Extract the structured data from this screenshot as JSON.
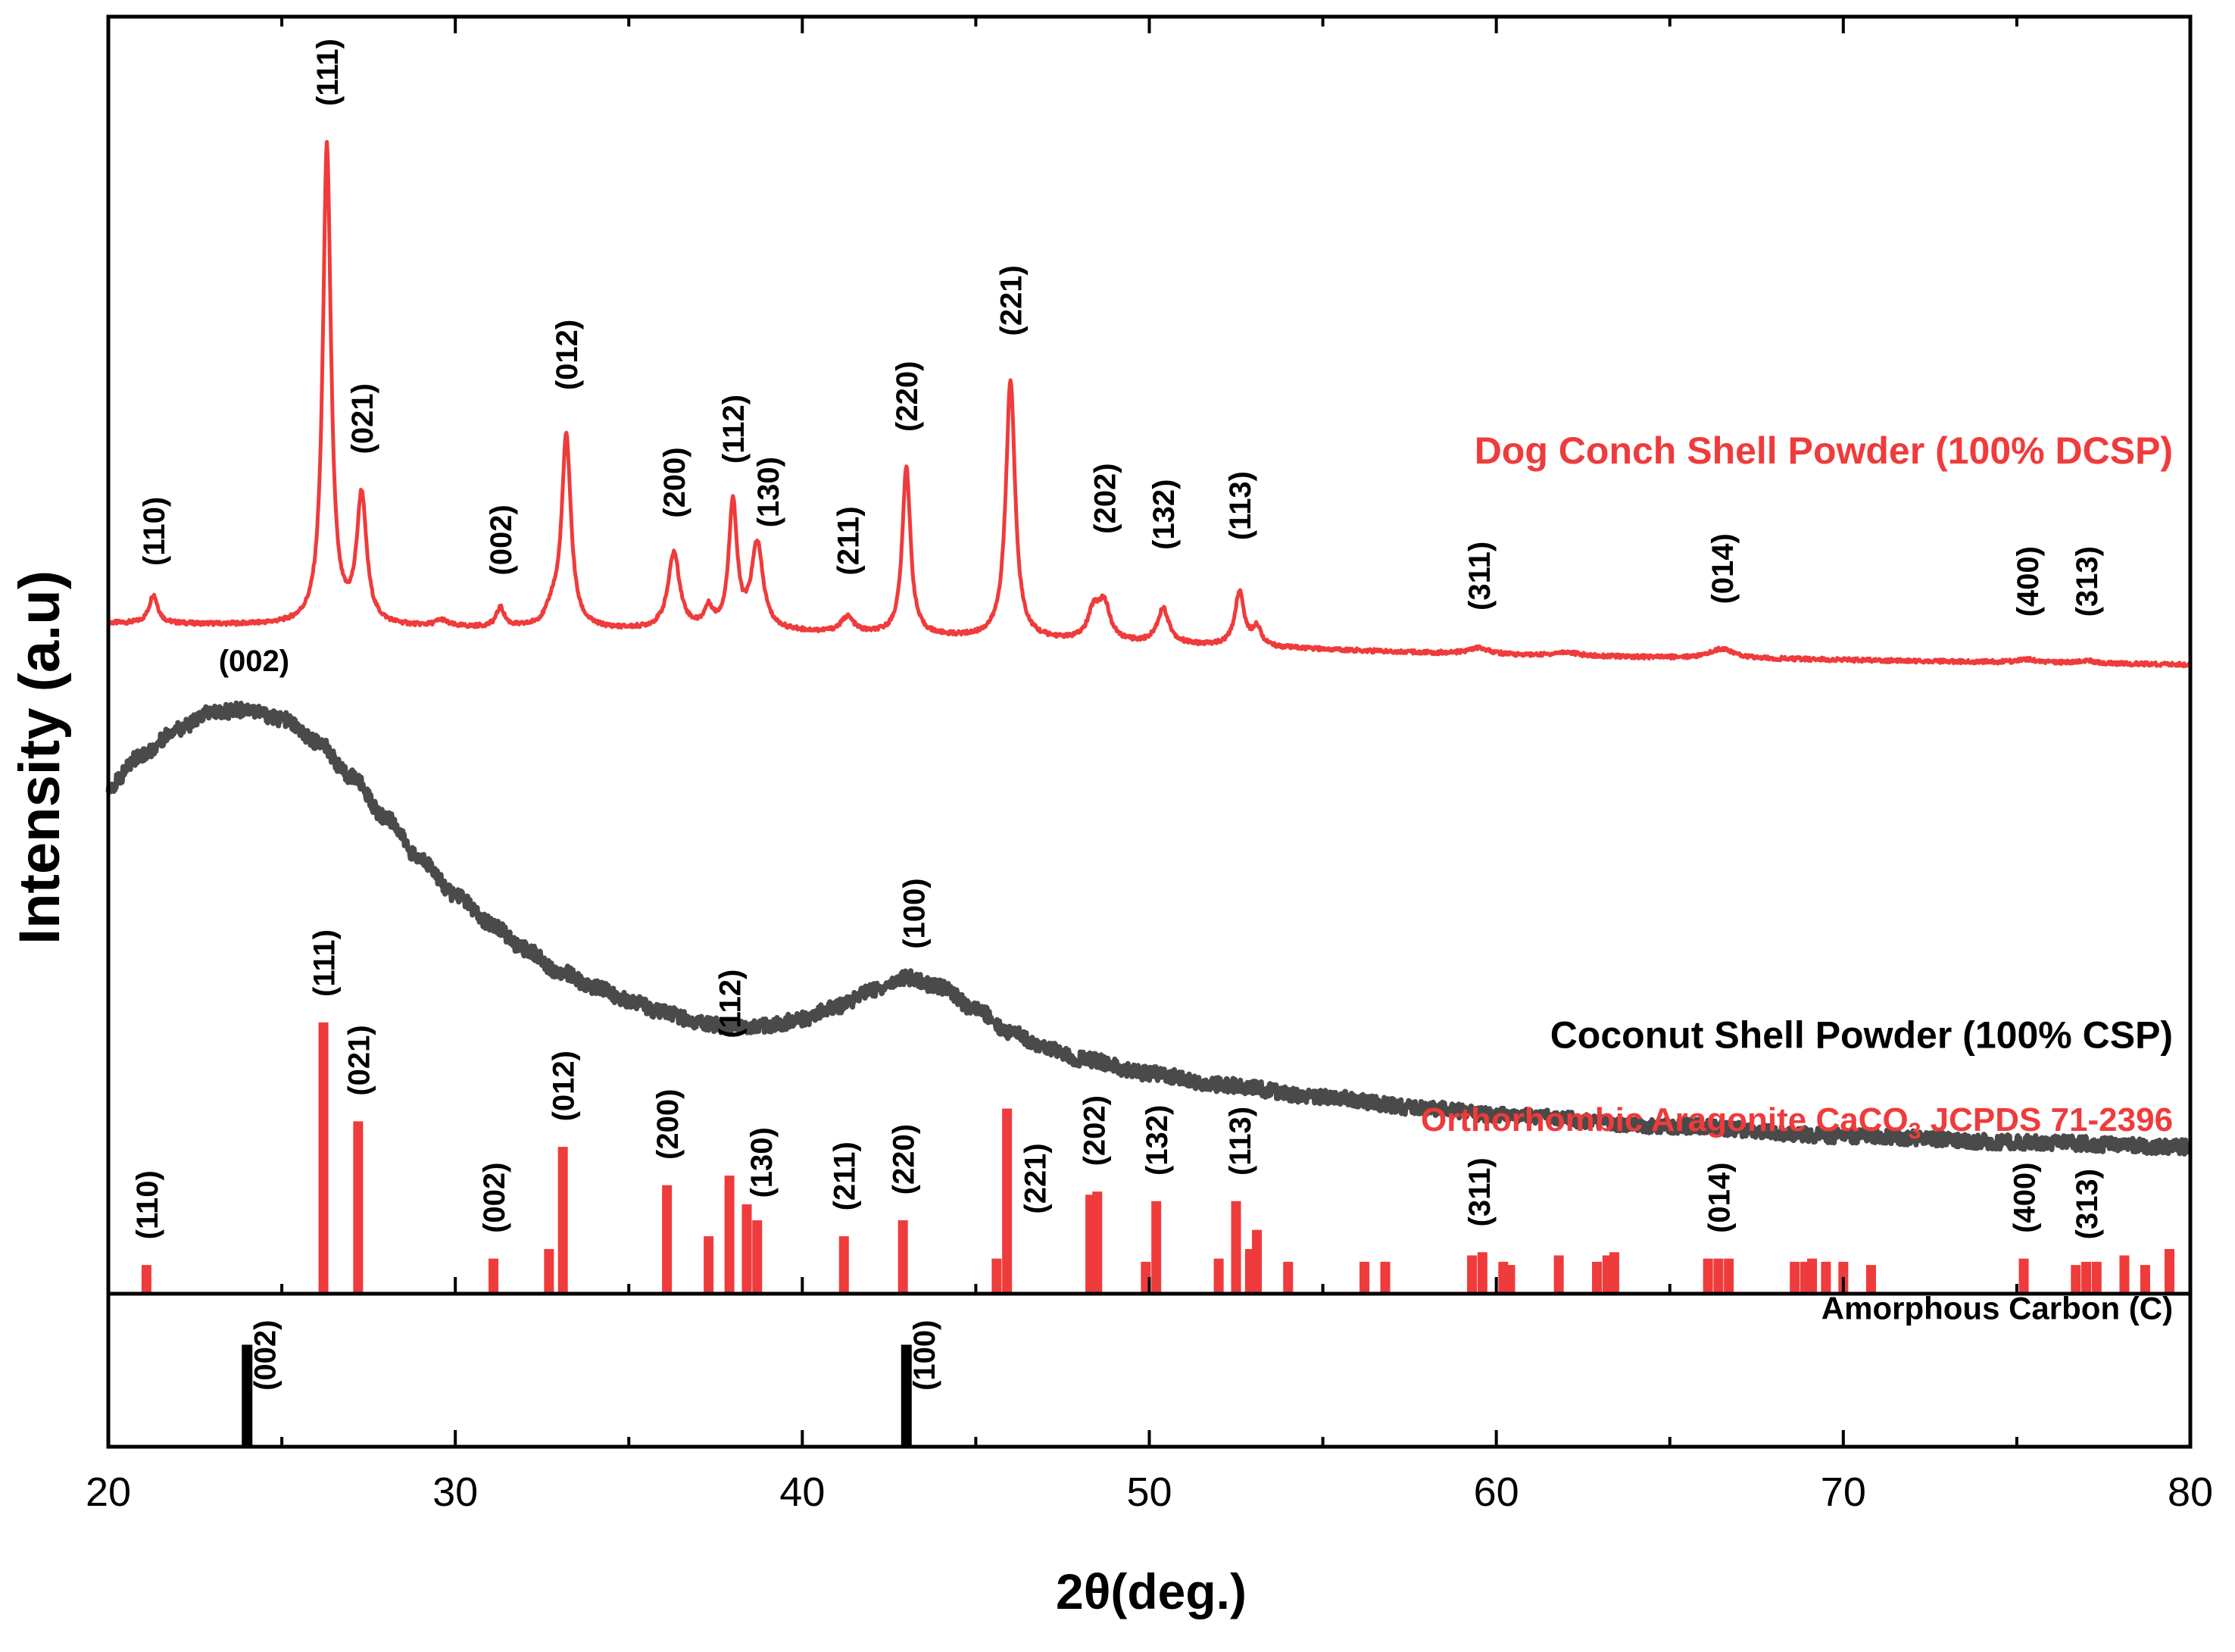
{
  "chart_data": {
    "type": "line",
    "xlabel": "2θ(deg.)",
    "ylabel": "Intensity (a.u)",
    "xlim": [
      20,
      80
    ],
    "x_ticks": [
      20,
      30,
      40,
      50,
      60,
      70,
      80
    ],
    "x_tick_labels": [
      "20",
      "30",
      "40",
      "50",
      "60",
      "70",
      "80"
    ],
    "y_ticks_shown": false,
    "colors": {
      "dcsp": "#ef3b3b",
      "csp": "#4a4a4a",
      "aragonite": "#ef3b3b",
      "carbon": "#000000"
    },
    "series": [
      {
        "name": "Dog Conch Shell Powder (100% DCSP)",
        "kind": "pattern",
        "baseline": [
          [
            20,
            21.0
          ],
          [
            40,
            20.7
          ],
          [
            60,
            20.0
          ],
          [
            80,
            19.7
          ]
        ],
        "peaks": [
          {
            "x": 21.3,
            "h": 0.9,
            "w": 0.15,
            "label": "(110)"
          },
          {
            "x": 26.3,
            "h": 15.0,
            "w": 0.14,
            "label": "(111)"
          },
          {
            "x": 27.3,
            "h": 4.0,
            "w": 0.17,
            "label": "(021)"
          },
          {
            "x": 29.6,
            "h": 0.2,
            "w": 0.2,
            "label": ""
          },
          {
            "x": 31.3,
            "h": 0.6,
            "w": 0.14,
            "label": "(002)"
          },
          {
            "x": 32.8,
            "h": 0.5,
            "w": 0.2,
            "label": ""
          },
          {
            "x": 33.2,
            "h": 6.0,
            "w": 0.16,
            "label": "(012)"
          },
          {
            "x": 36.3,
            "h": 2.4,
            "w": 0.2,
            "label": "(200)"
          },
          {
            "x": 37.3,
            "h": 0.6,
            "w": 0.15,
            "label": ""
          },
          {
            "x": 38.0,
            "h": 4.0,
            "w": 0.14,
            "label": "(112)"
          },
          {
            "x": 38.7,
            "h": 2.7,
            "w": 0.2,
            "label": "(130)"
          },
          {
            "x": 41.3,
            "h": 0.5,
            "w": 0.22,
            "label": "(211)"
          },
          {
            "x": 43.0,
            "h": 5.3,
            "w": 0.14,
            "label": "(220)"
          },
          {
            "x": 46.0,
            "h": 8.1,
            "w": 0.16,
            "label": "(221)"
          },
          {
            "x": 48.4,
            "h": 0.9,
            "w": 0.2,
            "label": ""
          },
          {
            "x": 48.7,
            "h": 1.1,
            "w": 0.2,
            "label": "(202)"
          },
          {
            "x": 50.4,
            "h": 1.1,
            "w": 0.2,
            "label": "(132)"
          },
          {
            "x": 52.6,
            "h": 1.7,
            "w": 0.16,
            "label": "(113)"
          },
          {
            "x": 53.1,
            "h": 0.6,
            "w": 0.15,
            "label": ""
          },
          {
            "x": 59.5,
            "h": 0.2,
            "w": 0.4,
            "label": "(311)"
          },
          {
            "x": 62.0,
            "h": 0.12,
            "w": 0.4,
            "label": ""
          },
          {
            "x": 66.5,
            "h": 0.3,
            "w": 0.4,
            "label": "(014)"
          },
          {
            "x": 75.3,
            "h": 0.1,
            "w": 0.3,
            "label": "(400)"
          },
          {
            "x": 77.0,
            "h": 0.08,
            "w": 0.3,
            "label": "(313)"
          }
        ],
        "label_positions": [
          {
            "label": "(110)",
            "x": 21.3,
            "y": 22.8
          },
          {
            "label": "(111)",
            "x": 26.3,
            "y": 37.2
          },
          {
            "label": "(021)",
            "x": 27.3,
            "y": 26.3
          },
          {
            "label": "(002)",
            "x": 31.3,
            "y": 22.5
          },
          {
            "label": "(012)",
            "x": 33.2,
            "y": 28.3
          },
          {
            "label": "(200)",
            "x": 36.3,
            "y": 24.3
          },
          {
            "label": "(112)",
            "x": 38.0,
            "y": 26.0
          },
          {
            "label": "(130)",
            "x": 39.0,
            "y": 24.0
          },
          {
            "label": "(211)",
            "x": 41.3,
            "y": 22.5
          },
          {
            "label": "(220)",
            "x": 43.0,
            "y": 27.0
          },
          {
            "label": "(221)",
            "x": 46.0,
            "y": 30.0
          },
          {
            "label": "(202)",
            "x": 48.7,
            "y": 23.8
          },
          {
            "label": "(132)",
            "x": 50.4,
            "y": 23.3
          },
          {
            "label": "(113)",
            "x": 52.6,
            "y": 23.6
          },
          {
            "label": "(311)",
            "x": 59.5,
            "y": 21.4
          },
          {
            "label": "(014)",
            "x": 66.5,
            "y": 21.6
          },
          {
            "label": "(400)",
            "x": 75.3,
            "y": 21.2
          },
          {
            "label": "(313)",
            "x": 77.0,
            "y": 21.2
          }
        ],
        "legend_label": {
          "text": "Dog Conch Shell Powder (100% DCSP)",
          "x": 79.5,
          "y": 26.0
        }
      },
      {
        "name": "Coconut Shell Powder (100% CSP)",
        "kind": "curve",
        "points": [
          [
            20,
            15.9
          ],
          [
            21,
            16.9
          ],
          [
            22,
            17.7
          ],
          [
            23,
            18.2
          ],
          [
            24,
            18.3
          ],
          [
            25,
            18.0
          ],
          [
            26,
            17.3
          ],
          [
            27,
            16.2
          ],
          [
            28,
            14.9
          ],
          [
            29,
            13.6
          ],
          [
            30,
            12.5
          ],
          [
            31,
            11.6
          ],
          [
            32,
            10.8
          ],
          [
            33,
            10.1
          ],
          [
            34,
            9.6
          ],
          [
            35,
            9.2
          ],
          [
            36,
            8.8
          ],
          [
            37,
            8.5
          ],
          [
            38,
            8.35
          ],
          [
            39,
            8.4
          ],
          [
            40,
            8.6
          ],
          [
            41,
            9.0
          ],
          [
            42,
            9.5
          ],
          [
            43,
            9.9
          ],
          [
            44,
            9.6
          ],
          [
            45,
            8.9
          ],
          [
            46,
            8.2
          ],
          [
            47,
            7.7
          ],
          [
            48,
            7.35
          ],
          [
            50,
            6.9
          ],
          [
            52,
            6.55
          ],
          [
            55,
            6.15
          ],
          [
            58,
            5.8
          ],
          [
            60,
            5.6
          ],
          [
            65,
            5.25
          ],
          [
            70,
            4.95
          ],
          [
            75,
            4.75
          ],
          [
            80,
            4.6
          ]
        ],
        "label_positions": [
          {
            "label": "(002)",
            "x": 24.2,
            "y": 19.5
          },
          {
            "label": "(100)",
            "x": 43.2,
            "y": 10.8
          }
        ],
        "legend_label": {
          "text": "Coconut Shell Powder (100% CSP)",
          "x": 79.5,
          "y": 7.7
        }
      },
      {
        "name": "Orthorhombic Aragonite CaCO3 JCPDS 71-2396",
        "kind": "stick",
        "sticks": [
          {
            "x": 21.1,
            "h": 0.9
          },
          {
            "x": 26.2,
            "h": 8.5
          },
          {
            "x": 27.2,
            "h": 5.4
          },
          {
            "x": 31.1,
            "h": 1.1
          },
          {
            "x": 32.7,
            "h": 1.4
          },
          {
            "x": 33.1,
            "h": 4.6
          },
          {
            "x": 36.1,
            "h": 3.4
          },
          {
            "x": 37.3,
            "h": 1.8
          },
          {
            "x": 37.9,
            "h": 3.7
          },
          {
            "x": 38.4,
            "h": 2.8
          },
          {
            "x": 38.7,
            "h": 2.3
          },
          {
            "x": 41.2,
            "h": 1.8
          },
          {
            "x": 42.9,
            "h": 2.3
          },
          {
            "x": 45.6,
            "h": 1.1
          },
          {
            "x": 45.9,
            "h": 5.8
          },
          {
            "x": 48.3,
            "h": 3.1
          },
          {
            "x": 48.5,
            "h": 3.2
          },
          {
            "x": 49.9,
            "h": 1.0
          },
          {
            "x": 50.2,
            "h": 2.9
          },
          {
            "x": 52.0,
            "h": 1.1
          },
          {
            "x": 52.5,
            "h": 2.9
          },
          {
            "x": 52.9,
            "h": 1.4
          },
          {
            "x": 53.1,
            "h": 2.0
          },
          {
            "x": 54.0,
            "h": 1.0
          },
          {
            "x": 56.2,
            "h": 1.0
          },
          {
            "x": 56.8,
            "h": 1.0
          },
          {
            "x": 59.3,
            "h": 1.2
          },
          {
            "x": 59.6,
            "h": 1.3
          },
          {
            "x": 60.2,
            "h": 1.0
          },
          {
            "x": 60.4,
            "h": 0.9
          },
          {
            "x": 61.8,
            "h": 1.2
          },
          {
            "x": 62.9,
            "h": 1.0
          },
          {
            "x": 63.2,
            "h": 1.2
          },
          {
            "x": 63.4,
            "h": 1.3
          },
          {
            "x": 66.1,
            "h": 1.1
          },
          {
            "x": 66.4,
            "h": 1.1
          },
          {
            "x": 66.7,
            "h": 1.1
          },
          {
            "x": 68.6,
            "h": 1.0
          },
          {
            "x": 68.9,
            "h": 1.0
          },
          {
            "x": 69.1,
            "h": 1.1
          },
          {
            "x": 69.5,
            "h": 1.0
          },
          {
            "x": 70.0,
            "h": 1.0
          },
          {
            "x": 70.8,
            "h": 0.9
          },
          {
            "x": 75.2,
            "h": 1.1
          },
          {
            "x": 76.7,
            "h": 0.9
          },
          {
            "x": 77.0,
            "h": 1.0
          },
          {
            "x": 77.3,
            "h": 1.0
          },
          {
            "x": 78.1,
            "h": 1.2
          },
          {
            "x": 78.7,
            "h": 0.9
          },
          {
            "x": 79.4,
            "h": 1.4
          }
        ],
        "label_positions": [
          {
            "label": "(110)",
            "x": 21.1,
            "y": 1.7
          },
          {
            "label": "(111)",
            "x": 26.2,
            "y": 9.3
          },
          {
            "label": "(021)",
            "x": 27.2,
            "y": 6.2
          },
          {
            "label": "(002)",
            "x": 31.1,
            "y": 1.9
          },
          {
            "label": "(012)",
            "x": 33.1,
            "y": 5.4
          },
          {
            "label": "(200)",
            "x": 36.1,
            "y": 4.2
          },
          {
            "label": "(112)",
            "x": 37.9,
            "y": 8.0
          },
          {
            "label": "(130)",
            "x": 38.8,
            "y": 3.0
          },
          {
            "label": "(211)",
            "x": 41.2,
            "y": 2.6
          },
          {
            "label": "(220)",
            "x": 42.9,
            "y": 3.1
          },
          {
            "label": "(221)",
            "x": 46.7,
            "y": 2.5
          },
          {
            "label": "(202)",
            "x": 48.4,
            "y": 4.0
          },
          {
            "label": "(132)",
            "x": 50.2,
            "y": 3.7
          },
          {
            "label": "(113)",
            "x": 52.6,
            "y": 3.7
          },
          {
            "label": "(311)",
            "x": 59.5,
            "y": 2.1
          },
          {
            "label": "(014)",
            "x": 66.4,
            "y": 1.9
          },
          {
            "label": "(400)",
            "x": 75.2,
            "y": 1.9
          },
          {
            "label": "(313)",
            "x": 77.0,
            "y": 1.7
          }
        ],
        "legend_label": {
          "text": "Orthorhombic Aragonite CaCO",
          "sub": "3",
          "suffix": " JCPDS 71-2396",
          "x": 79.5,
          "y": 5.1
        }
      },
      {
        "name": "Amorphous Carbon (C)",
        "kind": "stick",
        "sticks": [
          {
            "x": 24.0,
            "h": 4.0
          },
          {
            "x": 43.0,
            "h": 4.0
          }
        ],
        "label_positions": [
          {
            "label": "(002)",
            "x": 24.5,
            "y": 2.2
          },
          {
            "label": "(100)",
            "x": 43.5,
            "y": 2.2
          }
        ],
        "legend_label": {
          "text": "Amorphous Carbon (C)",
          "x": 79.5,
          "y": 5.0
        }
      }
    ]
  }
}
